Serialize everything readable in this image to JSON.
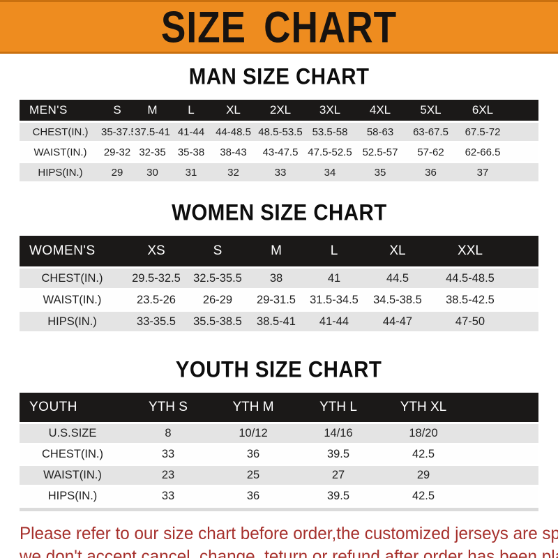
{
  "banner": {
    "title": "SIZE CHART"
  },
  "colors": {
    "banner_bg": "#EE8C1F",
    "banner_border": "#C9700F",
    "bar_bg": "#1B1918",
    "bar_text": "#FFFFFF",
    "row_gray": "#E4E4E4",
    "disclaimer_red": "#A6302C"
  },
  "chart_data": [
    {
      "type": "table",
      "title": "MAN SIZE CHART",
      "header": {
        "label": "MEN'S",
        "sizes": [
          "S",
          "M",
          "L",
          "XL",
          "2XL",
          "3XL",
          "4XL",
          "5XL",
          "6XL"
        ]
      },
      "rows": [
        {
          "label": "CHEST(IN.)",
          "values": [
            "35-37.5",
            "37.5-41",
            "41-44",
            "44-48.5",
            "48.5-53.5",
            "53.5-58",
            "58-63",
            "63-67.5",
            "67.5-72"
          ]
        },
        {
          "label": "WAIST(IN.)",
          "values": [
            "29-32",
            "32-35",
            "35-38",
            "38-43",
            "43-47.5",
            "47.5-52.5",
            "52.5-57",
            "57-62",
            "62-66.5"
          ]
        },
        {
          "label": "HIPS(IN.)",
          "values": [
            "29",
            "30",
            "31",
            "32",
            "33",
            "34",
            "35",
            "36",
            "37"
          ]
        }
      ]
    },
    {
      "type": "table",
      "title": "WOMEN SIZE CHART",
      "header": {
        "label": "WOMEN'S",
        "sizes": [
          "XS",
          "S",
          "M",
          "L",
          "XL",
          "XXL"
        ]
      },
      "rows": [
        {
          "label": "CHEST(IN.)",
          "values": [
            "29.5-32.5",
            "32.5-35.5",
            "38",
            "41",
            "44.5",
            "44.5-48.5"
          ]
        },
        {
          "label": "WAIST(IN.)",
          "values": [
            "23.5-26",
            "26-29",
            "29-31.5",
            "31.5-34.5",
            "34.5-38.5",
            "38.5-42.5"
          ]
        },
        {
          "label": "HIPS(IN.)",
          "values": [
            "33-35.5",
            "35.5-38.5",
            "38.5-41",
            "41-44",
            "44-47",
            "47-50"
          ]
        }
      ]
    },
    {
      "type": "table",
      "title": "YOUTH SIZE CHART",
      "header": {
        "label": "YOUTH",
        "sizes": [
          "YTH S",
          "YTH M",
          "YTH L",
          "YTH XL"
        ]
      },
      "rows": [
        {
          "label": "U.S.SIZE",
          "values": [
            "8",
            "10/12",
            "14/16",
            "18/20"
          ]
        },
        {
          "label": "CHEST(IN.)",
          "values": [
            "33",
            "36",
            "39.5",
            "42.5"
          ]
        },
        {
          "label": "WAIST(IN.)",
          "values": [
            "23",
            "25",
            "27",
            "29"
          ]
        },
        {
          "label": "HIPS(IN.)",
          "values": [
            "33",
            "36",
            "39.5",
            "42.5"
          ]
        }
      ]
    }
  ],
  "disclaimer": {
    "line1": "Please refer to our size chart before order,the customized jerseys are special products,",
    "line2": "we don't accept cancel, change, teturn or refund after order has been placed!"
  }
}
